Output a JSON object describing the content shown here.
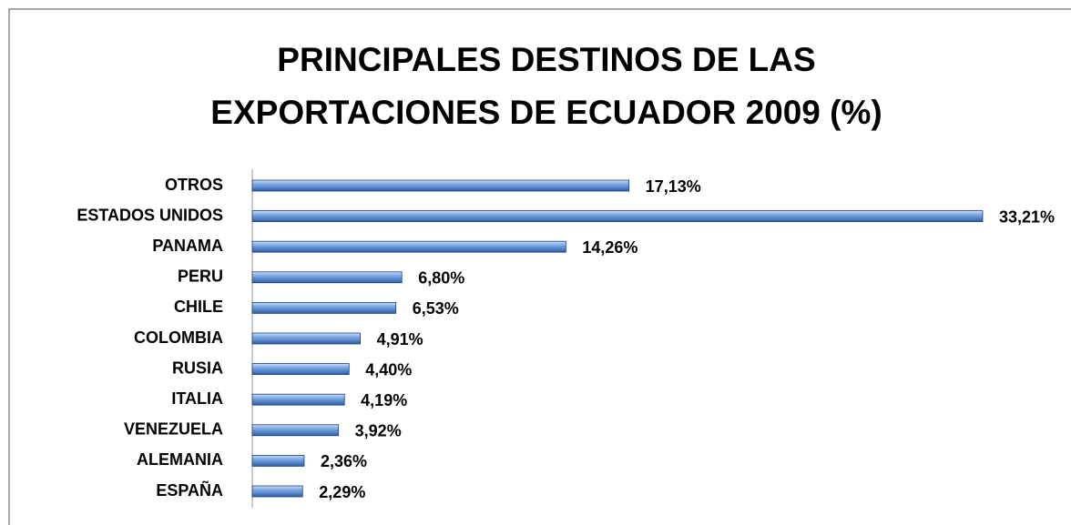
{
  "chart_data": {
    "type": "bar",
    "orientation": "horizontal",
    "title": [
      "PRINCIPALES DESTINOS DE LAS",
      "EXPORTACIONES DE ECUADOR 2009 (%)"
    ],
    "categories": [
      "OTROS",
      "ESTADOS UNIDOS",
      "PANAMA",
      "PERU",
      "CHILE",
      "COLOMBIA",
      "RUSIA",
      "ITALIA",
      "VENEZUELA",
      "ALEMANIA",
      "ESPAÑA"
    ],
    "values": [
      17.13,
      33.21,
      14.26,
      6.8,
      6.53,
      4.91,
      4.4,
      4.19,
      3.92,
      2.36,
      2.29
    ],
    "value_labels": [
      "17,13%",
      "33,21%",
      "14,26%",
      "6,80%",
      "6,53%",
      "4,91%",
      "4,40%",
      "4,19%",
      "3,92%",
      "2,36%",
      "2,29%"
    ],
    "color": "#4f86d0"
  }
}
